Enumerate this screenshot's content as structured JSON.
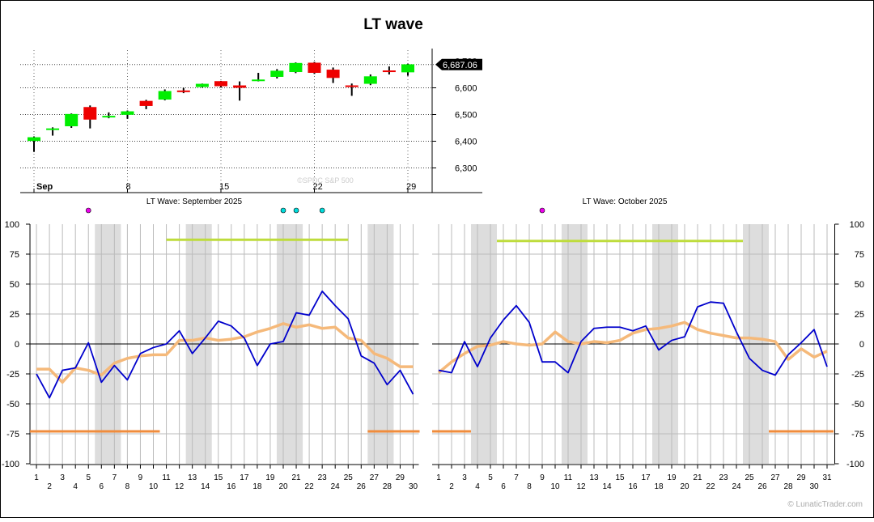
{
  "title": "LT wave",
  "credit": "© LunaticTrader.com",
  "colors": {
    "up": "#00ee00",
    "down": "#ee0000",
    "wave": "#0000cc",
    "smooth": "#f5b97a",
    "green_band": "#bedc3c",
    "orange_band": "#f08c3c",
    "shade": "#dddddd",
    "magenta_dot": "#ee00ee",
    "cyan_dot": "#00dddd"
  },
  "chart_data": [
    {
      "type": "candlestick",
      "watermark": "©SPDC    S&P 500",
      "last_price_label": "6,687.06",
      "partial_top_label": "6,700",
      "y_ticks": [
        "6,300",
        "6,400",
        "6,500",
        "6,600"
      ],
      "y_tick_values": [
        6300,
        6400,
        6500,
        6600
      ],
      "ylim": [
        6220,
        6740
      ],
      "x_month_label": "Sep",
      "x_tick_labels": [
        {
          "idx": 0,
          "label": "Sep"
        },
        {
          "idx": 5,
          "label": "8"
        },
        {
          "idx": 10,
          "label": "15"
        },
        {
          "idx": 15,
          "label": "22"
        },
        {
          "idx": 20,
          "label": "29"
        }
      ],
      "candles": [
        {
          "date": "Sep 2",
          "open": 6401,
          "high": 6418,
          "low": 6360,
          "close": 6415
        },
        {
          "date": "Sep 3",
          "open": 6446,
          "high": 6452,
          "low": 6421,
          "close": 6448
        },
        {
          "date": "Sep 4",
          "open": 6456,
          "high": 6504,
          "low": 6450,
          "close": 6502
        },
        {
          "date": "Sep 5",
          "open": 6528,
          "high": 6534,
          "low": 6448,
          "close": 6481
        },
        {
          "date": "Sep 8",
          "open": 6489,
          "high": 6508,
          "low": 6486,
          "close": 6495
        },
        {
          "date": "Sep 9",
          "open": 6499,
          "high": 6515,
          "low": 6484,
          "close": 6512
        },
        {
          "date": "Sep 10",
          "open": 6551,
          "high": 6555,
          "low": 6520,
          "close": 6532
        },
        {
          "date": "Sep 11",
          "open": 6556,
          "high": 6594,
          "low": 6553,
          "close": 6588
        },
        {
          "date": "Sep 12",
          "open": 6590,
          "high": 6600,
          "low": 6580,
          "close": 6584
        },
        {
          "date": "Sep 15",
          "open": 6603,
          "high": 6616,
          "low": 6601,
          "close": 6615
        },
        {
          "date": "Sep 16",
          "open": 6625,
          "high": 6626,
          "low": 6601,
          "close": 6606
        },
        {
          "date": "Sep 17",
          "open": 6609,
          "high": 6624,
          "low": 6552,
          "close": 6600
        },
        {
          "date": "Sep 18",
          "open": 6630,
          "high": 6656,
          "low": 6624,
          "close": 6631
        },
        {
          "date": "Sep 19",
          "open": 6641,
          "high": 6670,
          "low": 6635,
          "close": 6664
        },
        {
          "date": "Sep 22",
          "open": 6659,
          "high": 6695,
          "low": 6655,
          "close": 6693
        },
        {
          "date": "Sep 23",
          "open": 6694,
          "high": 6697,
          "low": 6652,
          "close": 6656
        },
        {
          "date": "Sep 24",
          "open": 6668,
          "high": 6676,
          "low": 6618,
          "close": 6637
        },
        {
          "date": "Sep 25",
          "open": 6609,
          "high": 6616,
          "low": 6570,
          "close": 6605
        },
        {
          "date": "Sep 26",
          "open": 6615,
          "high": 6650,
          "low": 6610,
          "close": 6643
        },
        {
          "date": "Sep 29",
          "open": 6665,
          "high": 6680,
          "low": 6650,
          "close": 6661
        },
        {
          "date": "Sep 30",
          "open": 6658,
          "high": 6690,
          "low": 6645,
          "close": 6688
        }
      ]
    },
    {
      "type": "line",
      "title": "LT Wave: September 2025",
      "days": 30,
      "ylim": [
        -100,
        100
      ],
      "y_ticks": [
        -100,
        -75,
        -50,
        -25,
        0,
        25,
        50,
        75,
        100
      ],
      "shaded_days": [
        [
          6,
          7
        ],
        [
          13,
          14
        ],
        [
          20,
          21
        ],
        [
          27,
          28
        ]
      ],
      "green_bands": [
        {
          "from": 11,
          "to": 25,
          "y": 87
        }
      ],
      "orange_bands": [
        {
          "from": 0.5,
          "to": 10.5,
          "y": -73
        },
        {
          "from": 26.5,
          "to": 30.5,
          "y": -73
        }
      ],
      "magenta_dots": [
        5
      ],
      "cyan_dots": [
        20,
        21,
        23
      ],
      "series": [
        {
          "values": [
            -25,
            -45,
            -22,
            -20,
            1,
            -32,
            -18,
            -30,
            -8,
            -3,
            0,
            11,
            -8,
            5,
            19,
            15,
            5,
            -18,
            0,
            2,
            26,
            24,
            44,
            32,
            21,
            -10,
            -16,
            -34,
            -22,
            -42
          ]
        },
        {
          "values": [
            -21,
            -21,
            -32,
            -20,
            -22,
            -26,
            -16,
            -12,
            -10,
            -9,
            -9,
            3,
            3,
            5,
            3,
            4,
            6,
            10,
            13,
            17,
            14,
            16,
            13,
            14,
            5,
            3,
            -8,
            -12,
            -19,
            -19
          ]
        }
      ]
    },
    {
      "type": "line",
      "title": "LT Wave: October 2025",
      "days": 31,
      "ylim": [
        -100,
        100
      ],
      "y_ticks": [
        -100,
        -75,
        -50,
        -25,
        0,
        25,
        50,
        75,
        100
      ],
      "shaded_days": [
        [
          4,
          5
        ],
        [
          11,
          12
        ],
        [
          18,
          19
        ],
        [
          25,
          26
        ]
      ],
      "green_bands": [
        {
          "from": 5.5,
          "to": 24.5,
          "y": 86
        }
      ],
      "orange_bands": [
        {
          "from": 0.5,
          "to": 3.5,
          "y": -73
        },
        {
          "from": 26.5,
          "to": 31.5,
          "y": -73
        }
      ],
      "magenta_dots": [
        9
      ],
      "cyan_dots": [],
      "series": [
        {
          "values": [
            -22,
            -24,
            2,
            -19,
            5,
            20,
            32,
            18,
            -15,
            -15,
            -24,
            2,
            13,
            14,
            14,
            11,
            15,
            -5,
            3,
            6,
            31,
            35,
            34,
            10,
            -12,
            -22,
            -26,
            -9,
            1,
            12,
            -19
          ]
        },
        {
          "values": [
            -24,
            -15,
            -8,
            -2,
            -1,
            2,
            0,
            -1,
            0,
            10,
            2,
            0,
            2,
            1,
            3,
            9,
            12,
            13,
            15,
            18,
            12,
            9,
            7,
            5,
            5,
            4,
            2,
            -13,
            -4,
            -11,
            -6
          ]
        }
      ]
    }
  ]
}
